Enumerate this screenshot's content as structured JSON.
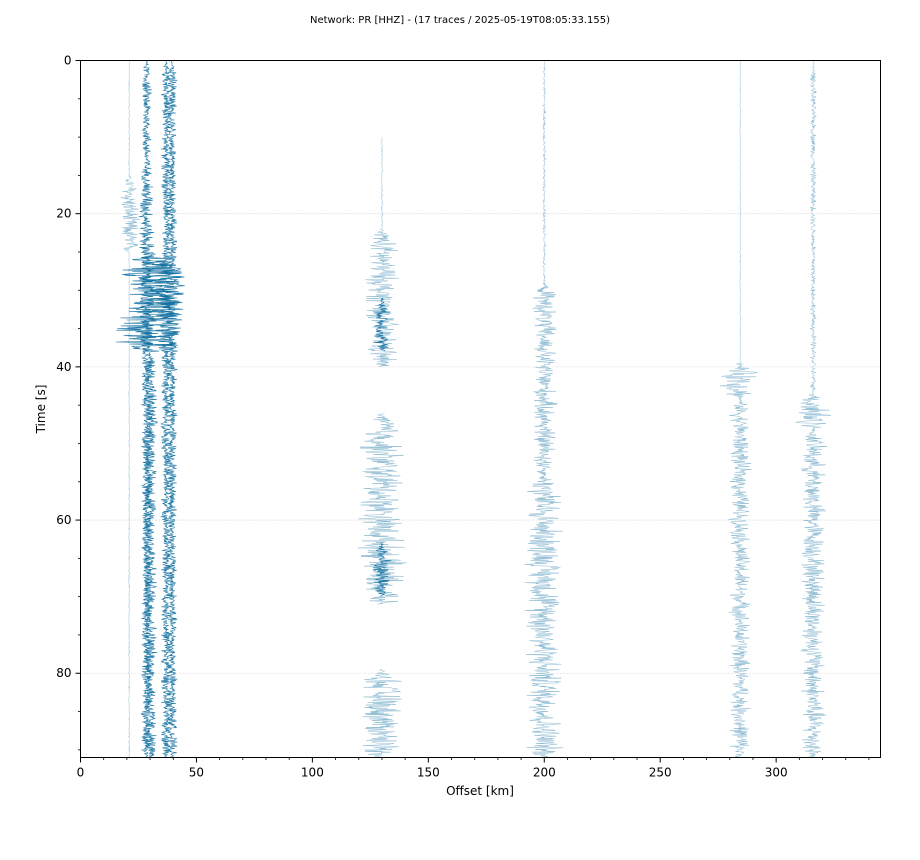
{
  "chart_data": {
    "type": "line",
    "title": "Network: PR [HHZ] - (17 traces / 2025-05-19T08:05:33.155)",
    "xlabel": "Offset [km]",
    "ylabel": "Time [s]",
    "xlim": [
      0,
      345
    ],
    "ylim": [
      91,
      0
    ],
    "y_inverted": true,
    "x_ticks": [
      0,
      50,
      100,
      150,
      200,
      250,
      300
    ],
    "y_ticks": [
      0,
      20,
      40,
      60,
      80
    ],
    "grid": "horizontal dotted at y ticks",
    "colors": {
      "dense": "#0f6fa0",
      "light": "#7fb2cd",
      "grid": "#c8c8c8"
    },
    "series": [
      {
        "offset": 21,
        "shade": "light",
        "packets": [
          {
            "t0": 0,
            "t1": 91,
            "amp": 0.4
          },
          {
            "t0": 15,
            "t1": 25,
            "amp": 5
          }
        ]
      },
      {
        "offset": 28.5,
        "shade": "dense",
        "packets": [
          {
            "t0": 0,
            "t1": 91,
            "amp": 2.5
          },
          {
            "t0": 15,
            "t1": 38,
            "amp": 4
          }
        ]
      },
      {
        "offset": 30,
        "shade": "dense",
        "packets": [
          {
            "t0": 25,
            "t1": 38,
            "amp": 16
          },
          {
            "t0": 38,
            "t1": 91,
            "amp": 3.5
          }
        ]
      },
      {
        "offset": 37,
        "shade": "dense",
        "packets": [
          {
            "t0": 0,
            "t1": 91,
            "amp": 2.5
          },
          {
            "t0": 25,
            "t1": 38,
            "amp": 8
          }
        ]
      },
      {
        "offset": 39.5,
        "shade": "dense",
        "packets": [
          {
            "t0": 0,
            "t1": 91,
            "amp": 2.5
          },
          {
            "t0": 26,
            "t1": 36,
            "amp": 7
          }
        ]
      },
      {
        "offset": 130,
        "shade": "light",
        "packets": [
          {
            "t0": 10,
            "t1": 22,
            "amp": 0.5
          },
          {
            "t0": 22,
            "t1": 40,
            "amp": 8
          },
          {
            "t0": 46,
            "t1": 71,
            "amp": 11
          },
          {
            "t0": 79.5,
            "t1": 91,
            "amp": 10
          }
        ]
      },
      {
        "offset": 130,
        "shade": "dense",
        "packets": [
          {
            "t0": 31,
            "t1": 38,
            "amp": 4
          },
          {
            "t0": 63,
            "t1": 70,
            "amp": 5
          }
        ]
      },
      {
        "offset": 200,
        "shade": "light",
        "packets": [
          {
            "t0": 0,
            "t1": 29,
            "amp": 0.8
          },
          {
            "t0": 29,
            "t1": 54,
            "amp": 6
          },
          {
            "t0": 54,
            "t1": 91,
            "amp": 9
          }
        ]
      },
      {
        "offset": 284.5,
        "shade": "light",
        "packets": [
          {
            "t0": 0,
            "t1": 39.5,
            "amp": 0.3
          },
          {
            "t0": 39.5,
            "t1": 44,
            "amp": 10
          },
          {
            "t0": 44,
            "t1": 91,
            "amp": 5
          }
        ]
      },
      {
        "offset": 316,
        "shade": "light",
        "packets": [
          {
            "t0": 0,
            "t1": 43.5,
            "amp": 1.5
          },
          {
            "t0": 43.5,
            "t1": 48,
            "amp": 12
          },
          {
            "t0": 48,
            "t1": 91,
            "amp": 6
          }
        ]
      }
    ]
  }
}
